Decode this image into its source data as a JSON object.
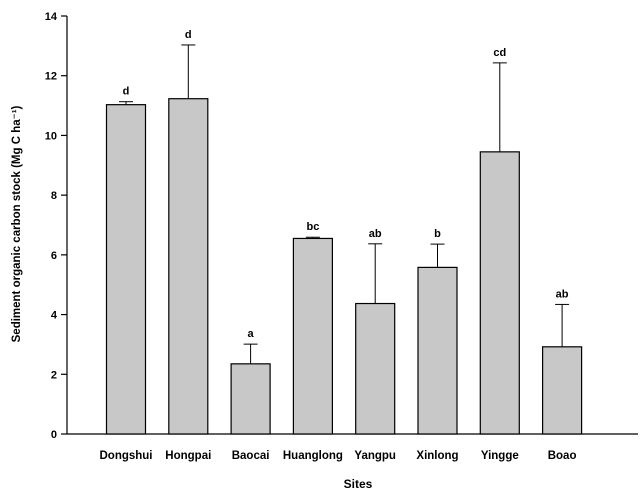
{
  "chart_data": {
    "type": "bar",
    "title": "",
    "xlabel": "Sites",
    "ylabel": "Sediment organic carbon stock (Mg C ha⁻¹)",
    "ylim": [
      0,
      14
    ],
    "yticks": [
      0,
      2,
      4,
      6,
      8,
      10,
      12,
      14
    ],
    "ytick_labels": [
      "0",
      "2",
      "4",
      "6",
      "8",
      "10",
      "12",
      "14"
    ],
    "categories": [
      "Dongshui",
      "Hongpai",
      "Baocai",
      "Huanglong",
      "Yangpu",
      "Xinlong",
      "Yingge",
      "Boao"
    ],
    "values": [
      11.03,
      11.23,
      2.35,
      6.55,
      4.37,
      5.58,
      9.45,
      2.92
    ],
    "errors": [
      0.1,
      1.8,
      0.66,
      0.04,
      2.0,
      0.78,
      2.98,
      1.42
    ],
    "significance_letters": [
      "d",
      "d",
      "a",
      "bc",
      "ab",
      "b",
      "cd",
      "ab"
    ],
    "grid": false,
    "colors": {
      "bar_fill": "#c8c8c8",
      "bar_stroke": "#000000"
    }
  }
}
